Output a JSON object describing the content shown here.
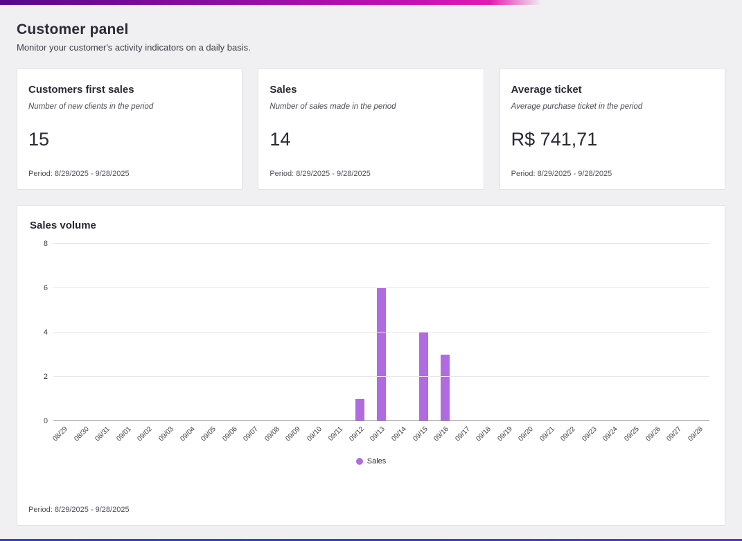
{
  "page": {
    "title": "Customer panel",
    "subtitle": "Monitor your customer's activity indicators on a daily basis."
  },
  "cards": [
    {
      "title": "Customers first sales",
      "description": "Number of new clients in the period",
      "value": "15",
      "period": "Period: 8/29/2025 - 9/28/2025"
    },
    {
      "title": "Sales",
      "description": "Number of sales made in the period",
      "value": "14",
      "period": "Period: 8/29/2025 - 9/28/2025"
    },
    {
      "title": "Average ticket",
      "description": "Average purchase ticket in the period",
      "value": "R$ 741,71",
      "period": "Period: 8/29/2025 - 9/28/2025"
    }
  ],
  "chart_card": {
    "title": "Sales volume",
    "period": "Period: 8/29/2025 - 9/28/2025"
  },
  "chart_data": {
    "type": "bar",
    "title": "Sales volume",
    "categories": [
      "08/29",
      "08/30",
      "08/31",
      "09/01",
      "09/02",
      "09/03",
      "09/04",
      "09/05",
      "09/06",
      "09/07",
      "09/08",
      "09/09",
      "09/10",
      "09/11",
      "09/12",
      "09/13",
      "09/14",
      "09/15",
      "09/16",
      "09/17",
      "09/18",
      "09/19",
      "09/20",
      "09/21",
      "09/22",
      "09/23",
      "09/24",
      "09/25",
      "09/26",
      "09/27",
      "09/28"
    ],
    "series": [
      {
        "name": "Sales",
        "values": [
          0,
          0,
          0,
          0,
          0,
          0,
          0,
          0,
          0,
          0,
          0,
          0,
          0,
          0,
          1,
          6,
          0,
          4,
          3,
          0,
          0,
          0,
          0,
          0,
          0,
          0,
          0,
          0,
          0,
          0,
          0
        ]
      }
    ],
    "xlabel": "",
    "ylabel": "",
    "ylim": [
      0,
      8
    ],
    "yticks": [
      0,
      2,
      4,
      6,
      8
    ],
    "grid": true,
    "legend_position": "bottom",
    "color": "#b16be0"
  },
  "colors": {
    "accent_gradient_start": "#56078c",
    "accent_gradient_end": "#e31bb0",
    "bottom_bar": "#2c43d8",
    "bar": "#b16be0",
    "background": "#f0f0f2"
  }
}
